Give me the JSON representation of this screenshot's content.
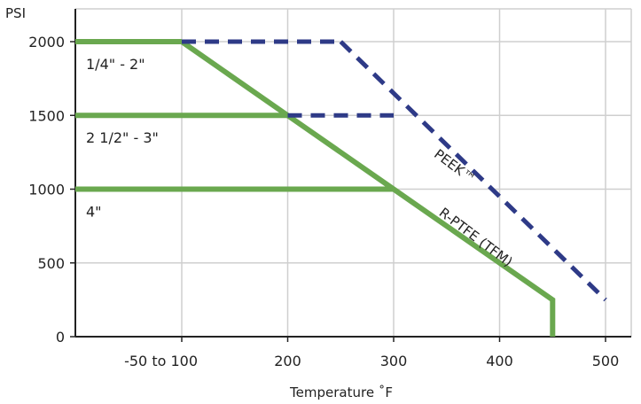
{
  "chart_data": {
    "type": "line",
    "xlabel": "Temperature  ˚F",
    "ylabel": "PSI",
    "xlim": [
      50,
      510
    ],
    "ylim": [
      0,
      2000
    ],
    "x_ticks": [
      {
        "value": 100,
        "label": "-50 to 100"
      },
      {
        "value": 200,
        "label": "200"
      },
      {
        "value": 300,
        "label": "300"
      },
      {
        "value": 400,
        "label": "400"
      },
      {
        "value": 500,
        "label": "500"
      }
    ],
    "y_ticks": [
      {
        "value": 0,
        "label": "0"
      },
      {
        "value": 500,
        "label": "500"
      },
      {
        "value": 1000,
        "label": "1000"
      },
      {
        "value": 1500,
        "label": "1500"
      },
      {
        "value": 2000,
        "label": "2000"
      }
    ],
    "grid": true,
    "series": [
      {
        "name": "R-PTFE (TFM)",
        "style": "solid",
        "color": "#6aa84f",
        "points": [
          [
            100,
            2000
          ],
          [
            200,
            1500
          ],
          [
            300,
            1000
          ],
          [
            450,
            250
          ],
          [
            450,
            0
          ]
        ]
      },
      {
        "name": "PEEK™",
        "style": "dashed",
        "color": "#2e3a87",
        "points": [
          [
            250,
            2000
          ],
          [
            500,
            250
          ]
        ]
      },
      {
        "name": "",
        "style": "solid",
        "color": "#6aa84f",
        "points": [
          [
            50,
            2000
          ],
          [
            100,
            2000
          ]
        ]
      },
      {
        "name": "",
        "style": "solid",
        "color": "#6aa84f",
        "points": [
          [
            50,
            1500
          ],
          [
            200,
            1500
          ]
        ]
      },
      {
        "name": "",
        "style": "solid",
        "color": "#6aa84f",
        "points": [
          [
            50,
            1000
          ],
          [
            300,
            1000
          ]
        ]
      },
      {
        "name": "",
        "style": "dashed",
        "color": "#2e3a87",
        "points": [
          [
            100,
            2000
          ],
          [
            250,
            2000
          ]
        ]
      },
      {
        "name": "",
        "style": "dashed",
        "color": "#2e3a87",
        "points": [
          [
            200,
            1500
          ],
          [
            300,
            1500
          ]
        ]
      }
    ],
    "size_labels": [
      {
        "text": "1/4\" - 2\"",
        "x": 57,
        "y": 1850
      },
      {
        "text": "2 1/2\" - 3\"",
        "x": 57,
        "y": 1350
      },
      {
        "text": "4\"",
        "x": 57,
        "y": 850
      }
    ]
  },
  "colors": {
    "green": "#6aa84f",
    "navy": "#2e3a87",
    "grid": "#cfcfcf",
    "axis": "#222222"
  }
}
